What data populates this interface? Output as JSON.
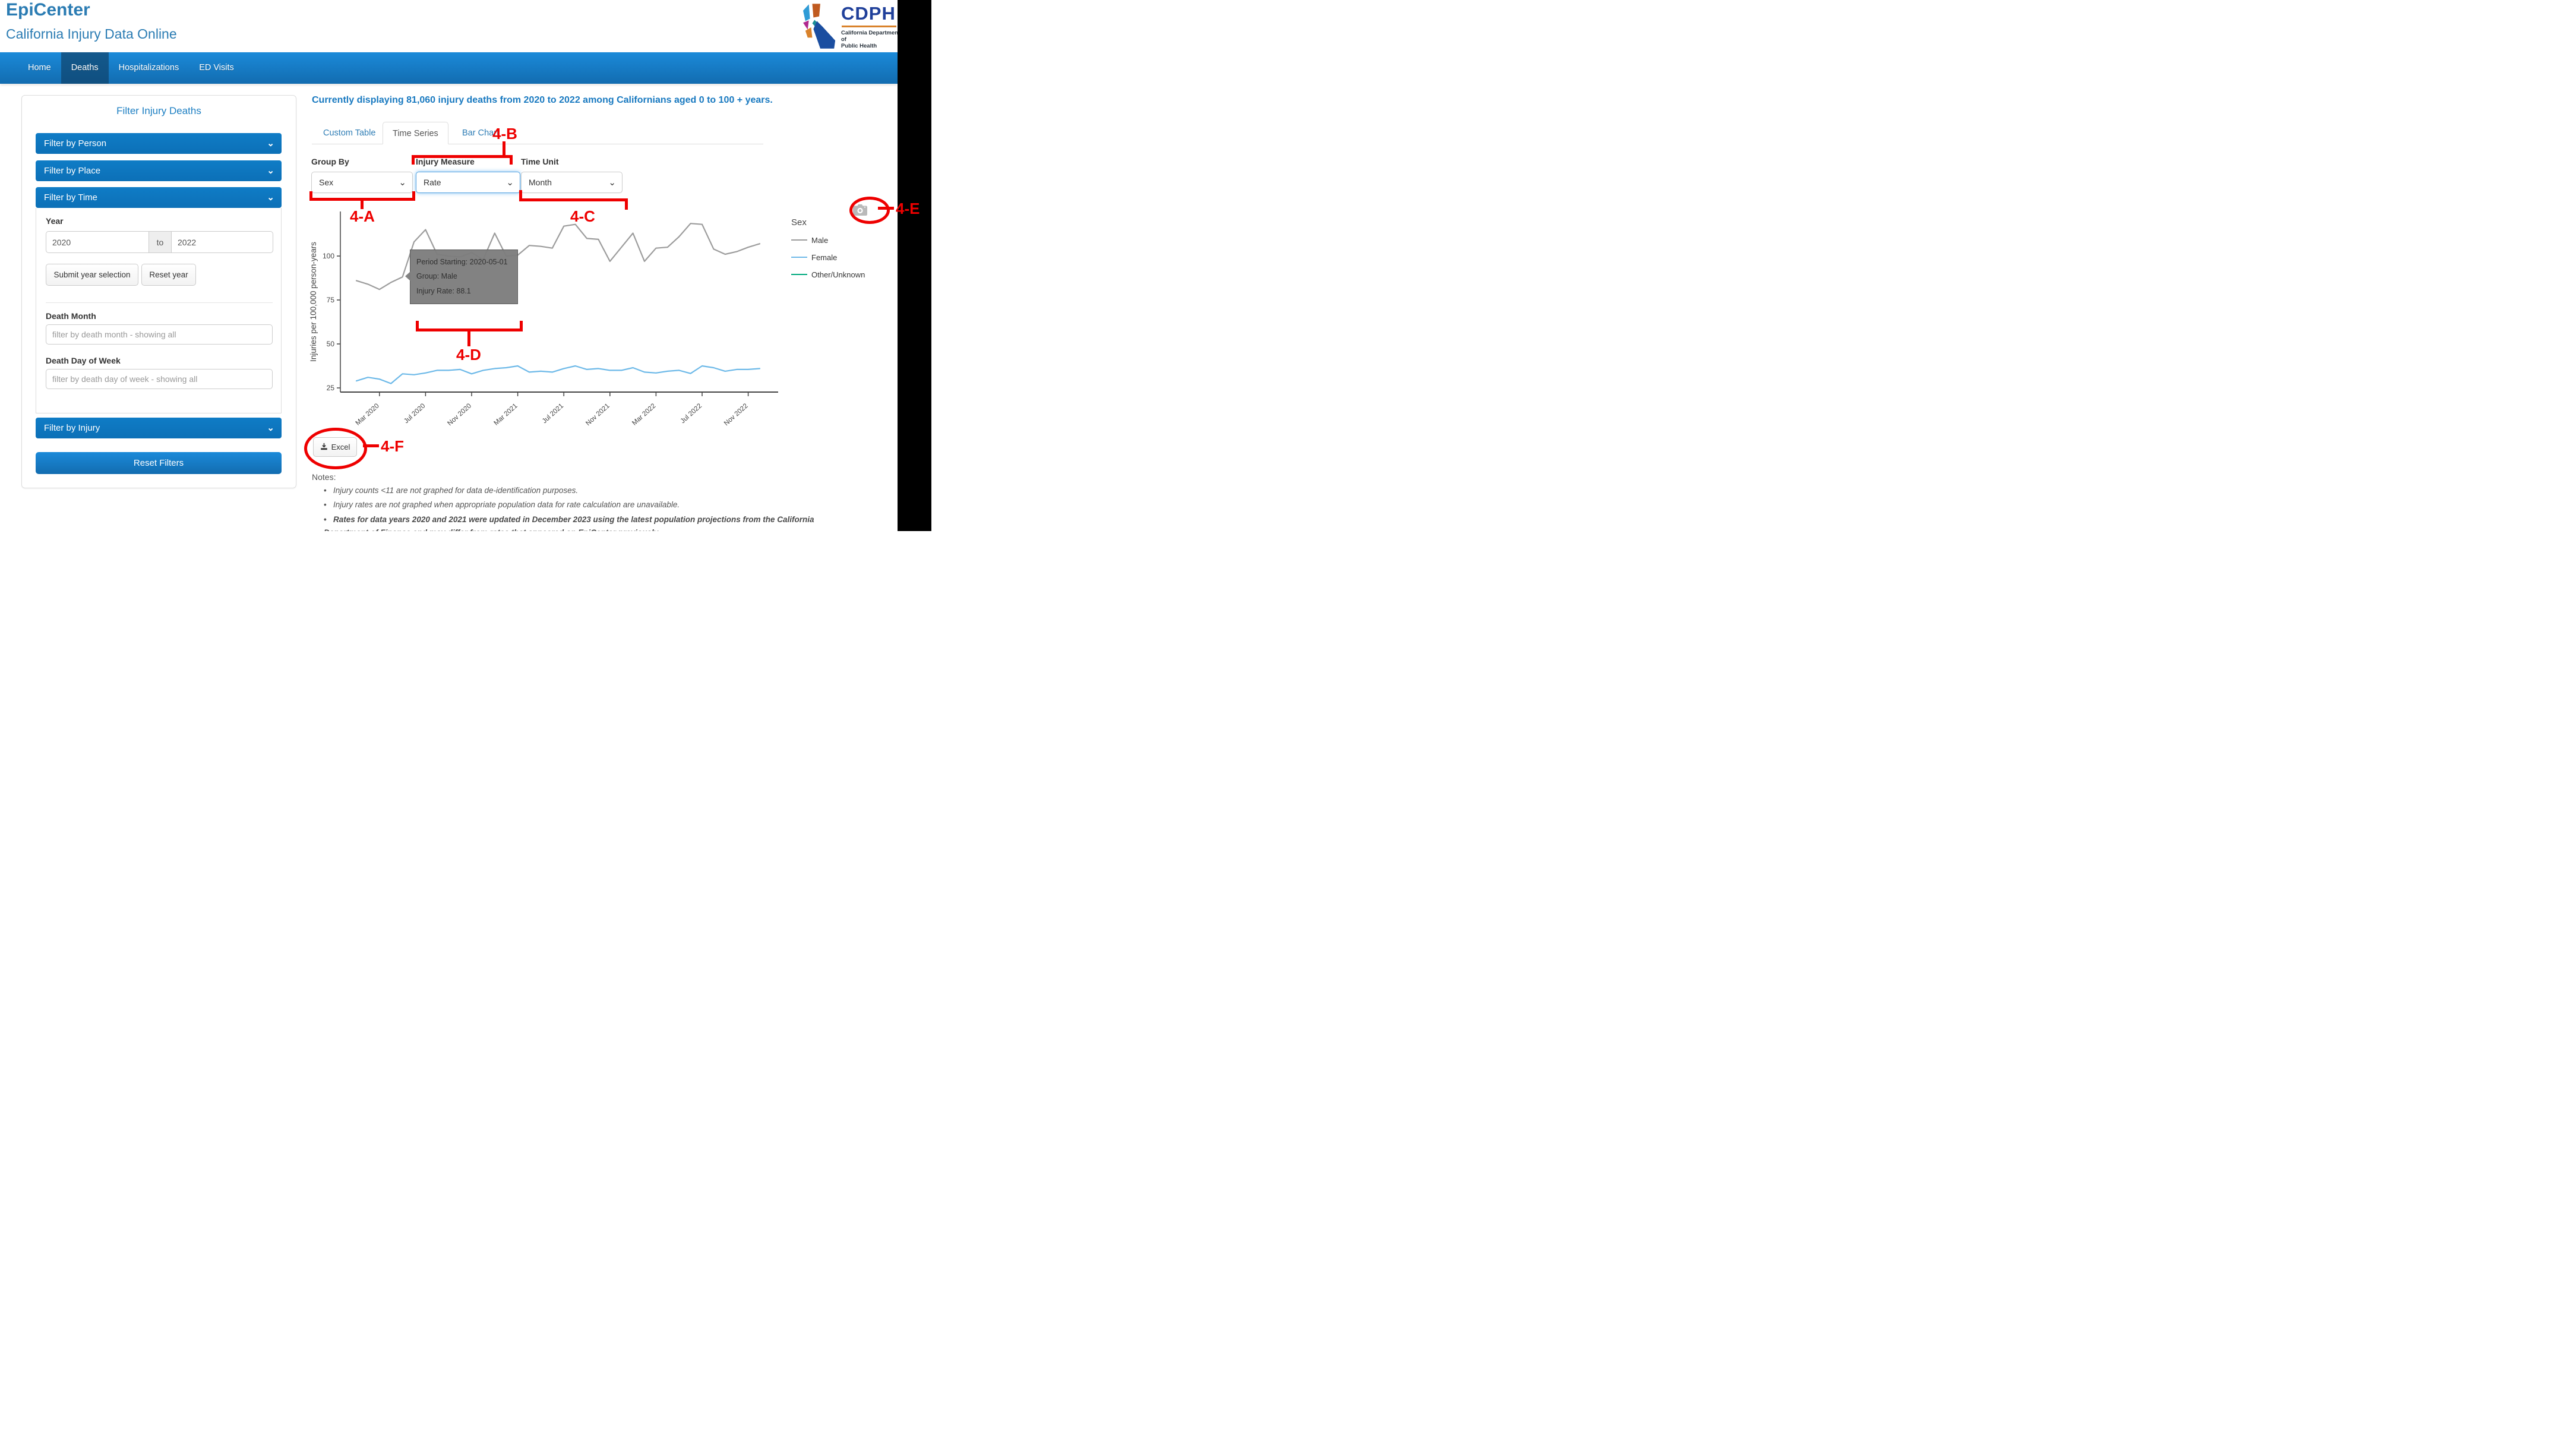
{
  "header": {
    "title": "EpiCenter",
    "subtitle": "California Injury Data Online"
  },
  "logo": {
    "acronym": "CDPH",
    "org_line1": "California Department of",
    "org_line2": "Public Health"
  },
  "nav": {
    "items": [
      {
        "label": "Home",
        "active": false
      },
      {
        "label": "Deaths",
        "active": true
      },
      {
        "label": "Hospitalizations",
        "active": false
      },
      {
        "label": "ED Visits",
        "active": false
      }
    ]
  },
  "sidebar": {
    "title": "Filter Injury Deaths",
    "accordions": [
      "Filter by Person",
      "Filter by Place",
      "Filter by Time",
      "Filter by Injury"
    ],
    "year": {
      "label": "Year",
      "from": "2020",
      "separator": "to",
      "to": "2022",
      "submit_label": "Submit year selection",
      "reset_label": "Reset year"
    },
    "death_month": {
      "label": "Death Month",
      "placeholder": "filter by death month - showing all"
    },
    "death_day_of_week": {
      "label": "Death Day of Week",
      "placeholder": "filter by death day of week - showing all"
    },
    "reset_filters_label": "Reset Filters"
  },
  "main": {
    "heading": "Currently displaying 81,060 injury deaths from 2020 to 2022 among Californians aged 0 to 100 + years.",
    "tabs": [
      {
        "label": "Custom Table",
        "active": false
      },
      {
        "label": "Time Series",
        "active": true
      },
      {
        "label": "Bar Chart",
        "active": false
      }
    ],
    "controls": [
      {
        "label": "Group By",
        "value": "Sex"
      },
      {
        "label": "Injury Measure",
        "value": "Rate",
        "focused": true
      },
      {
        "label": "Time Unit",
        "value": "Month"
      }
    ],
    "excel_label": "Excel",
    "notes_label": "Notes:",
    "notes": [
      "Injury counts <11 are not graphed for data de-identification purposes.",
      "Injury rates are not graphed when appropriate population data for rate calculation are unavailable.",
      "Rates for data years 2020 and 2021 were updated in December 2023 using the latest population projections from the California Department of Finance and may differ from rates that appeared on EpiCenter previously."
    ]
  },
  "legend": {
    "title": "Sex",
    "items": [
      {
        "label": "Male",
        "color": "#9c9c9c"
      },
      {
        "label": "Female",
        "color": "#6db9e8"
      },
      {
        "label": "Other/Unknown",
        "color": "#00a97e"
      }
    ]
  },
  "tooltip": {
    "line1": "Period Starting: 2020-05-01",
    "line2": "Group: Male",
    "line3": "Injury Rate: 88.1"
  },
  "annotations": {
    "a": "4-A",
    "b": "4-B",
    "c": "4-C",
    "d": "4-D",
    "e": "4-E",
    "f": "4-F",
    "color": "#ee0000"
  },
  "icons": {
    "accordion_chevron": "chevron-down",
    "select_chevron": "chevron-down",
    "camera": "camera-snapshot",
    "excel": "download"
  },
  "chart_data": {
    "type": "line",
    "x": [
      "2020-01",
      "2020-02",
      "2020-03",
      "2020-04",
      "2020-05",
      "2020-06",
      "2020-07",
      "2020-08",
      "2020-09",
      "2020-10",
      "2020-11",
      "2020-12",
      "2021-01",
      "2021-02",
      "2021-03",
      "2021-04",
      "2021-05",
      "2021-06",
      "2021-07",
      "2021-08",
      "2021-09",
      "2021-10",
      "2021-11",
      "2021-12",
      "2022-01",
      "2022-02",
      "2022-03",
      "2022-04",
      "2022-05",
      "2022-06",
      "2022-07",
      "2022-08",
      "2022-09",
      "2022-10",
      "2022-11",
      "2022-12"
    ],
    "series": [
      {
        "name": "Male",
        "color": "#9c9c9c",
        "values": [
          86,
          84,
          81,
          85,
          88.1,
          108,
          115,
          101,
          100,
          99.5,
          102,
          98,
          113,
          100,
          100.5,
          106,
          105.5,
          104.5,
          117,
          118,
          110,
          109.5,
          97,
          105,
          113,
          97,
          104.5,
          105,
          111,
          118.5,
          118,
          104,
          101,
          102.5,
          105,
          107
        ]
      },
      {
        "name": "Female",
        "color": "#6db9e8",
        "values": [
          29,
          31,
          30,
          27.5,
          33,
          32.5,
          33.5,
          35,
          35,
          35.5,
          33,
          35,
          36,
          36.5,
          37.5,
          34,
          34.5,
          34,
          36,
          37.5,
          35.5,
          36,
          35,
          35,
          36.5,
          34,
          33.5,
          34.5,
          35,
          33.2,
          37.5,
          36.5,
          34.5,
          35.5,
          35.5,
          36
        ]
      },
      {
        "name": "Other/Unknown",
        "color": "#00a97e",
        "values": [
          null,
          null,
          null,
          null,
          null,
          null,
          null,
          null,
          null,
          null,
          null,
          null,
          null,
          null,
          null,
          null,
          null,
          null,
          null,
          null,
          null,
          null,
          null,
          null,
          null,
          null,
          null,
          null,
          null,
          null,
          null,
          null,
          null,
          null,
          null,
          null
        ],
        "note": "not graphed (suppressed / unavailable)"
      }
    ],
    "title": "",
    "xlabel": "",
    "ylabel": "Injuries per 100,000 person-years",
    "yticks": [
      25,
      50,
      75,
      100
    ],
    "ylim": [
      22,
      125
    ],
    "xticks": [
      {
        "index": 2,
        "label": "Mar 2020"
      },
      {
        "index": 6,
        "label": "Jul 2020"
      },
      {
        "index": 10,
        "label": "Nov 2020"
      },
      {
        "index": 14,
        "label": "Mar 2021"
      },
      {
        "index": 18,
        "label": "Jul 2021"
      },
      {
        "index": 22,
        "label": "Nov 2021"
      },
      {
        "index": 26,
        "label": "Mar 2022"
      },
      {
        "index": 30,
        "label": "Jul 2022"
      },
      {
        "index": 34,
        "label": "Nov 2022"
      }
    ],
    "legend_title": "Sex",
    "legend_position": "right",
    "grid": false,
    "hover_point": {
      "x": "2020-05",
      "series": "Male",
      "value": 88.1
    }
  }
}
